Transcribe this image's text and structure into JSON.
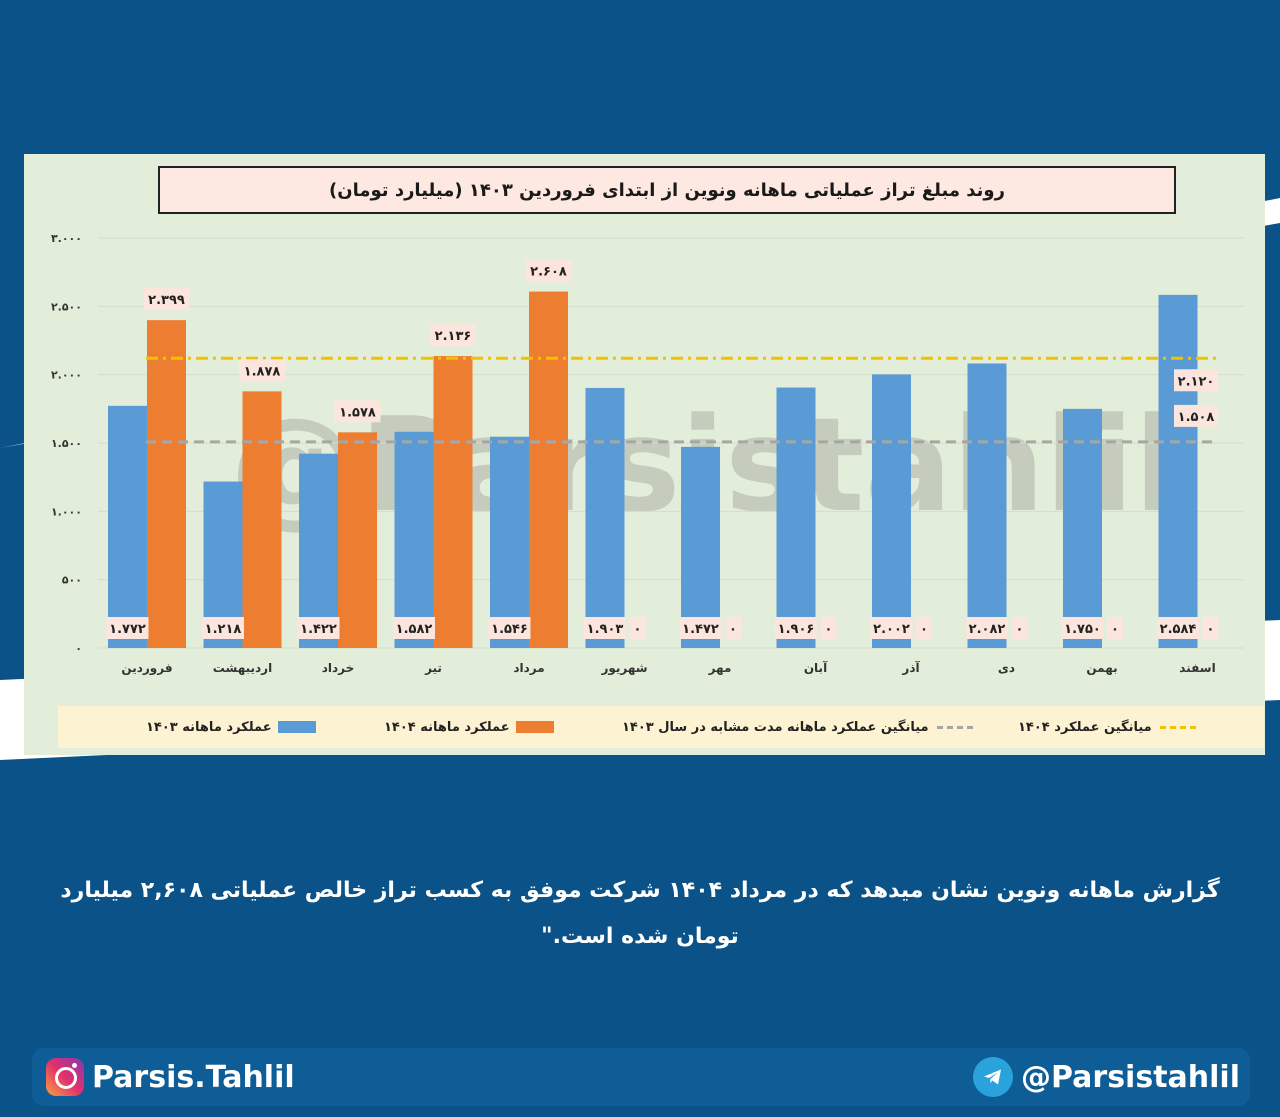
{
  "title": "روند مبلغ تراز عملیاتی ماهانه ونوین از ابتدای فروردین ۱۴۰۳ (میلیارد تومان)",
  "caption": "گزارش ماهانه ونوین نشان میدهد که در مرداد ۱۴۰۴ شرکت موفق به کسب تراز خالص عملیاتی  ۲,۶۰۸ میلیارد تومان شده است.\"",
  "footer": {
    "instagram": "Parsis.Tahlil",
    "telegram": "@Parsistahlil"
  },
  "watermark": "@Parsistahlil",
  "colors": {
    "series_1403": "#5b9bd5",
    "series_1404": "#ed7d31",
    "avg_1403": "#a6a6a6",
    "avg_1404": "#f2c100",
    "background": "#0a5287",
    "plot_bg": "#e3eeda"
  },
  "chart_data": {
    "type": "bar",
    "title": "روند مبلغ تراز عملیاتی ماهانه ونوین از ابتدای فروردین ۱۴۰۳ (میلیارد تومان)",
    "categories": [
      "فروردین",
      "اردیبهشت",
      "خرداد",
      "تیر",
      "مرداد",
      "شهریور",
      "مهر",
      "آبان",
      "آذر",
      "دی",
      "بهمن",
      "اسفند"
    ],
    "series": [
      {
        "name": "عملکرد ماهانه ۱۴۰۳",
        "values": [
          1772,
          1218,
          1422,
          1582,
          1546,
          1903,
          1472,
          1906,
          2002,
          2082,
          1750,
          2584
        ],
        "labels": [
          "۱.۷۷۲",
          "۱.۲۱۸",
          "۱.۴۲۲",
          "۱.۵۸۲",
          "۱.۵۴۶",
          "۱.۹۰۳",
          "۱.۴۷۲",
          "۱.۹۰۶",
          "۲.۰۰۲",
          "۲.۰۸۲",
          "۱.۷۵۰",
          "۲.۵۸۴"
        ]
      },
      {
        "name": "عملکرد ماهانه ۱۴۰۴",
        "values": [
          2399,
          1878,
          1578,
          2136,
          2608,
          0,
          0,
          0,
          0,
          0,
          0,
          0
        ],
        "labels": [
          "۲.۳۹۹",
          "۱.۸۷۸",
          "۱.۵۷۸",
          "۲.۱۳۶",
          "۲.۶۰۸",
          "۰",
          "۰",
          "۰",
          "۰",
          "۰",
          "۰",
          "۰"
        ]
      }
    ],
    "reference_lines": [
      {
        "name": "میانگین عملکرد ماهانه مدت مشابه در سال ۱۴۰۳",
        "value": 1508,
        "label": "۱.۵۰۸",
        "style": "dashed"
      },
      {
        "name": "میانگین عملکرد ۱۴۰۴",
        "value": 2120,
        "label": "۲.۱۲۰",
        "style": "dash-dot"
      }
    ],
    "yticks": [
      0,
      500,
      1000,
      1500,
      2000,
      2500,
      3000
    ],
    "ytick_labels": [
      "۰",
      "۵۰۰",
      "۱.۰۰۰",
      "۱.۵۰۰",
      "۲.۰۰۰",
      "۲.۵۰۰",
      "۳.۰۰۰"
    ],
    "ylim": [
      0,
      3000
    ],
    "grid": true,
    "legend_position": "bottom"
  }
}
